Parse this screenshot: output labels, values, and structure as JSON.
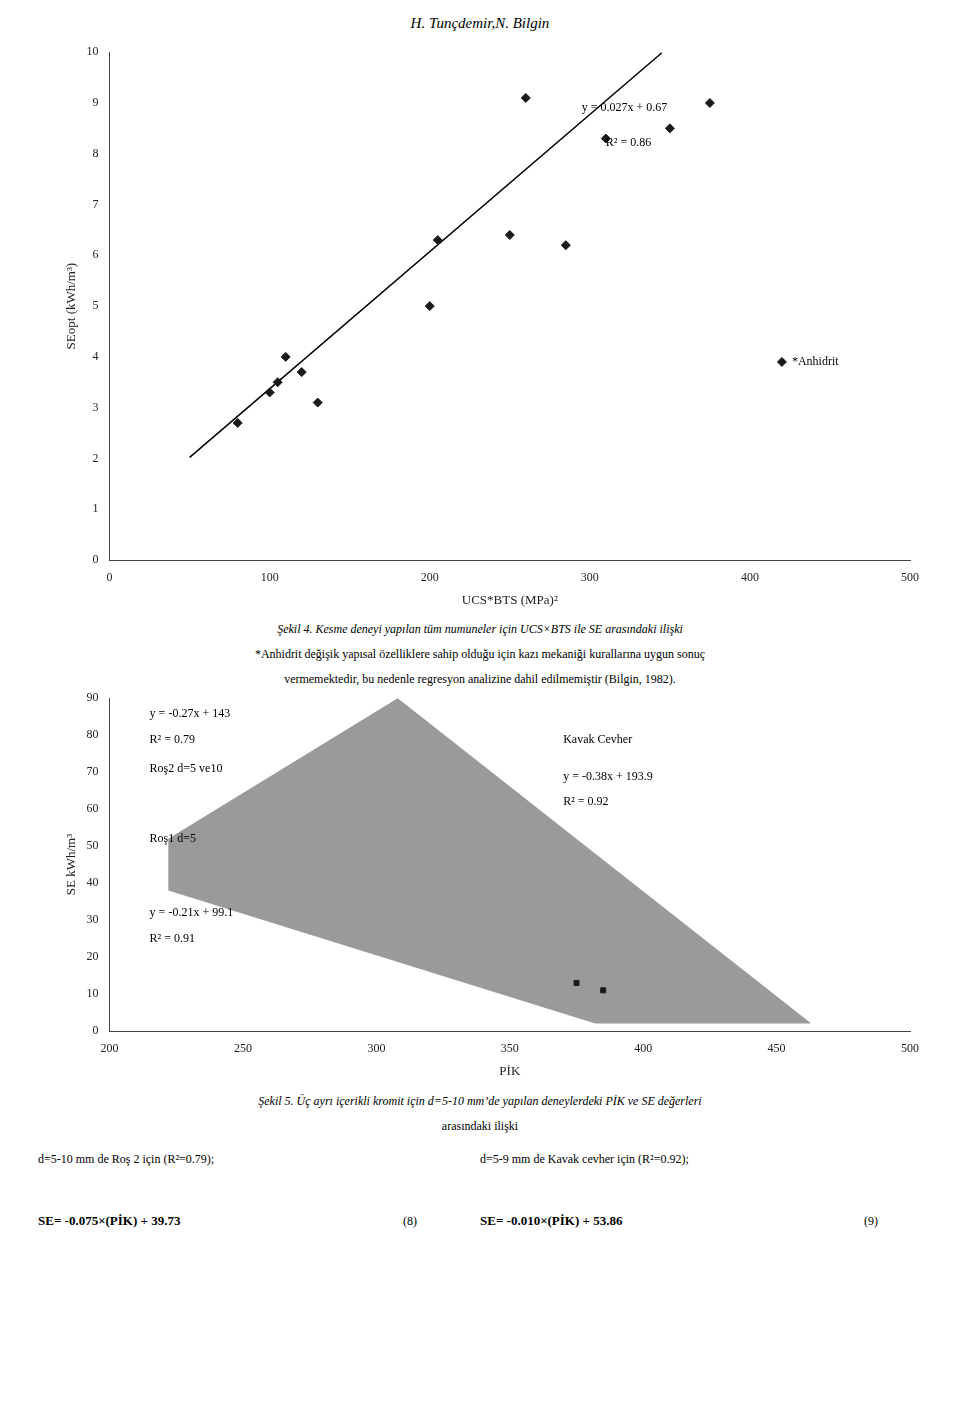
{
  "header": "H. Tunçdemir,N. Bilgin",
  "chart_data": [
    {
      "type": "scatter",
      "x_label": "UCS*BTS (MPa)²",
      "y_label": "SEopt (kWh/m³)",
      "xlim": [
        0,
        500
      ],
      "ylim": [
        0,
        10
      ],
      "xticks": [
        0,
        100,
        200,
        300,
        400,
        500
      ],
      "yticks": [
        0,
        1,
        2,
        3,
        4,
        5,
        6,
        7,
        8,
        9,
        10
      ],
      "grid": false,
      "series": [
        {
          "type": "scatter",
          "marker": "diamond",
          "color": "#1a1a1a",
          "x": [
            80,
            100,
            105,
            110,
            120,
            130,
            200,
            205,
            250,
            260,
            285,
            310,
            350,
            375
          ],
          "values": [
            2.7,
            3.3,
            3.5,
            4.0,
            3.7,
            3.1,
            5.0,
            6.3,
            6.4,
            9.1,
            6.2,
            8.3,
            8.5,
            9.0
          ]
        },
        {
          "type": "line",
          "color": "#000000",
          "x": [
            50,
            345
          ],
          "values": [
            2.02,
            9.99
          ]
        },
        {
          "type": "scatter",
          "marker": "diamond",
          "color": "#1a1a1a",
          "x": [
            420
          ],
          "values": [
            3.9
          ],
          "label": "*Anhidrit"
        }
      ],
      "annotations": [
        {
          "text": "y = 0.027x + 0.67",
          "x": 295,
          "y": 8.85
        },
        {
          "text": "R² = 0.86",
          "x": 310,
          "y": 8.15
        }
      ],
      "caption": [
        "Şekil 4. Kesme deneyi yapılan tüm numuneler için UCS×BTS ile SE arasındaki ilişki",
        "*Anhidrit değişik yapısal özelliklere sahip olduğu için kazı mekaniği kurallarına uygun sonuç",
        "vermemektedir, bu nedenle regresyon analizine dahil edilmemiştir (Bilgin, 1982)."
      ]
    },
    {
      "type": "scatter",
      "x_label": "PİK",
      "y_label": "SE kWh/m³",
      "xlim": [
        200,
        500
      ],
      "ylim": [
        0,
        90
      ],
      "xticks": [
        200,
        250,
        300,
        350,
        400,
        450,
        500
      ],
      "yticks": [
        0,
        10,
        20,
        30,
        40,
        50,
        60,
        70,
        80,
        90
      ],
      "grid": false,
      "series": [
        {
          "type": "area",
          "color": "#888888",
          "x": [
            222,
            222,
            308,
            463,
            382,
            222
          ],
          "values": [
            38,
            52,
            90,
            2,
            2,
            38
          ]
        },
        {
          "type": "scatter",
          "marker": "square",
          "color": "#1a1a1a",
          "x": [
            375,
            385
          ],
          "values": [
            13,
            11
          ]
        }
      ],
      "annotations": [
        {
          "text": "y = -0.27x + 143",
          "x": 215,
          "y": 85
        },
        {
          "text": "R² = 0.79",
          "x": 215,
          "y": 78
        },
        {
          "text": "Roş2 d=5 ve10",
          "x": 215,
          "y": 70
        },
        {
          "text": "Roş1 d=5",
          "x": 215,
          "y": 51
        },
        {
          "text": "y = -0.21x + 99.1",
          "x": 215,
          "y": 31
        },
        {
          "text": "R² = 0.91",
          "x": 215,
          "y": 24
        },
        {
          "text": "Kavak Cevher",
          "x": 370,
          "y": 78
        },
        {
          "text": "y = -0.38x + 193.9",
          "x": 370,
          "y": 68
        },
        {
          "text": "R² = 0.92",
          "x": 370,
          "y": 61
        }
      ],
      "caption": [
        "Şekil 5. Üç ayrı içerikli kromit için d=5-10 mm’de yapılan deneylerdeki PİK ve SE değerleri",
        "arasındaki ilişki"
      ]
    }
  ],
  "notes": [
    [
      "d=5-10 mm de Roş 2 için (R²=0.79);",
      "d=5-9 mm de Kavak cevher için (R²=0.92);"
    ],
    [
      "SE= -0.075×(PİK) + 39.73",
      "(8)",
      "SE= -0.010×(PİK) + 53.86",
      "(9)"
    ]
  ]
}
